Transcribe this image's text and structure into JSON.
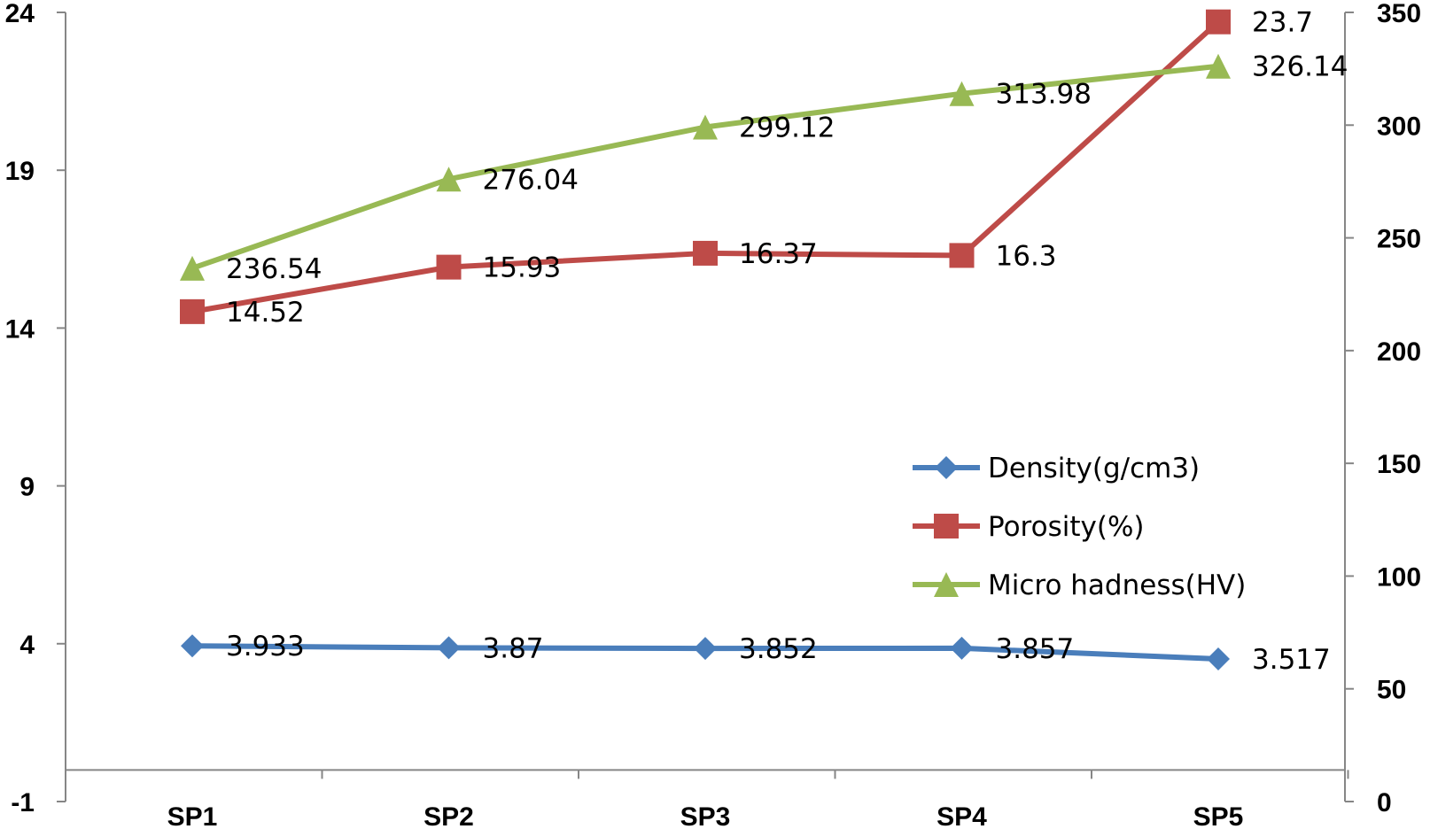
{
  "chart_data": {
    "type": "line",
    "categories": [
      "SP1",
      "SP2",
      "SP3",
      "SP4",
      "SP5"
    ],
    "y_left": {
      "ticks": [
        24,
        19,
        14,
        9,
        4,
        -1
      ],
      "lim": [
        -1,
        24
      ]
    },
    "y_right": {
      "ticks": [
        350,
        300,
        250,
        200,
        150,
        100,
        50,
        0
      ],
      "lim": [
        0,
        350
      ]
    },
    "legend_position": "center-right",
    "grid": false,
    "series": [
      {
        "name": "Density(g/cm3)",
        "axis": "left",
        "marker": "diamond",
        "color": "#4A7EBB",
        "values": [
          3.933,
          3.87,
          3.852,
          3.857,
          3.517
        ],
        "labels": [
          "3.933",
          "3.87",
          "3.852",
          "3.857",
          "3.517"
        ]
      },
      {
        "name": "Porosity(%)",
        "axis": "left",
        "marker": "square",
        "color": "#BE4B48",
        "values": [
          14.52,
          15.93,
          16.37,
          16.3,
          23.7
        ],
        "labels": [
          "14.52",
          "15.93",
          "16.37",
          "16.3",
          "23.7"
        ]
      },
      {
        "name": "Micro hadness(HV)",
        "axis": "right",
        "marker": "triangle",
        "color": "#98B954",
        "values": [
          236.54,
          276.04,
          299.12,
          313.98,
          326.14
        ],
        "labels": [
          "236.54",
          "276.04",
          "299.12",
          "313.98",
          "326.14"
        ]
      }
    ]
  }
}
